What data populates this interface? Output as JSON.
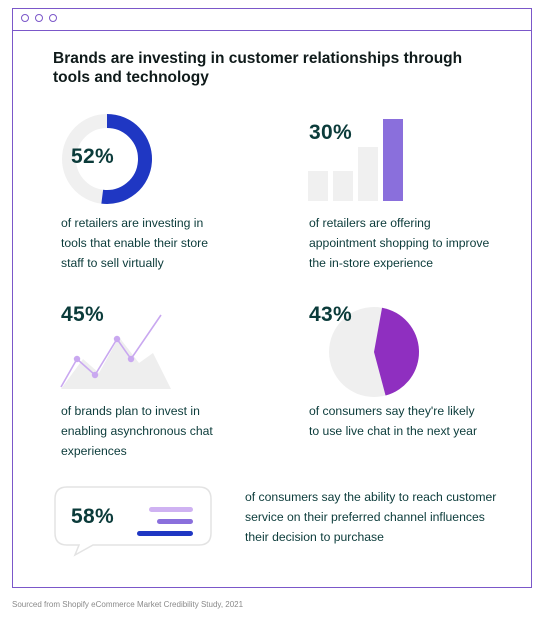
{
  "title": "Brands are investing in customer relationships through tools and technology",
  "stats": [
    {
      "value": "52%",
      "fraction": 0.52,
      "caption": "of retailers are investing in tools that enable their store staff to sell virtually"
    },
    {
      "value": "30%",
      "caption": "of retailers are offering appointment shopping to improve the in-store experience"
    },
    {
      "value": "45%",
      "caption": "of brands plan to invest in enabling asynchronous chat experiences"
    },
    {
      "value": "43%",
      "fraction": 0.43,
      "caption": "of consumers say they're likely to use live chat in the next year"
    },
    {
      "value": "58%",
      "caption": "of consumers say the ability to reach customer service on their preferred channel influences their decision to purchase"
    }
  ],
  "footnote": "Sourced from Shopify eCommerce Market Credibility Study, 2021",
  "colors": {
    "purple": "#7b57c9",
    "blue": "#1f37c3",
    "violet": "#8f2fc0",
    "light_gray": "#efefef",
    "teal_text": "#0b3b3a"
  }
}
